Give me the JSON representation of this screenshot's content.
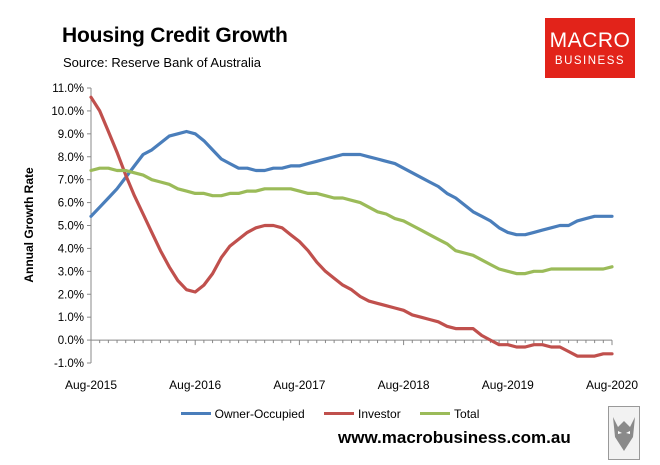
{
  "header": {
    "title": "Housing Credit Growth",
    "subtitle": "Source: Reserve Bank of Australia"
  },
  "logo": {
    "line1": "MACRO",
    "line2": "BUSINESS",
    "background": "#e2231a"
  },
  "footer": {
    "website": "www.macrobusiness.com.au",
    "wolf_logo": "wolf-logo-icon"
  },
  "chart_data": {
    "type": "line",
    "title": "Housing Credit Growth",
    "subtitle": "Source: Reserve Bank of Australia",
    "xlabel": "",
    "ylabel": "Annual Growth Rate",
    "x": [
      "2015-08",
      "2015-09",
      "2015-10",
      "2015-11",
      "2015-12",
      "2016-01",
      "2016-02",
      "2016-03",
      "2016-04",
      "2016-05",
      "2016-06",
      "2016-07",
      "2016-08",
      "2016-09",
      "2016-10",
      "2016-11",
      "2016-12",
      "2017-01",
      "2017-02",
      "2017-03",
      "2017-04",
      "2017-05",
      "2017-06",
      "2017-07",
      "2017-08",
      "2017-09",
      "2017-10",
      "2017-11",
      "2017-12",
      "2018-01",
      "2018-02",
      "2018-03",
      "2018-04",
      "2018-05",
      "2018-06",
      "2018-07",
      "2018-08",
      "2018-09",
      "2018-10",
      "2018-11",
      "2018-12",
      "2019-01",
      "2019-02",
      "2019-03",
      "2019-04",
      "2019-05",
      "2019-06",
      "2019-07",
      "2019-08",
      "2019-09",
      "2019-10",
      "2019-11",
      "2019-12",
      "2020-01",
      "2020-02",
      "2020-03",
      "2020-04",
      "2020-05",
      "2020-06",
      "2020-07",
      "2020-08"
    ],
    "x_tick_labels": [
      "Aug-2015",
      "Aug-2016",
      "Aug-2017",
      "Aug-2018",
      "Aug-2019",
      "Aug-2020"
    ],
    "y_tick_labels": [
      "-1.0%",
      "0.0%",
      "1.0%",
      "2.0%",
      "3.0%",
      "4.0%",
      "5.0%",
      "6.0%",
      "7.0%",
      "8.0%",
      "9.0%",
      "10.0%",
      "11.0%"
    ],
    "ylim": [
      -1,
      11
    ],
    "y_step": 1,
    "grid": false,
    "legend_position": "bottom",
    "series": [
      {
        "name": "Owner-Occupied",
        "color": "#4a7ebb",
        "values": [
          5.4,
          5.8,
          6.2,
          6.6,
          7.1,
          7.6,
          8.1,
          8.3,
          8.6,
          8.9,
          9.0,
          9.1,
          9.0,
          8.7,
          8.3,
          7.9,
          7.7,
          7.5,
          7.5,
          7.4,
          7.4,
          7.5,
          7.5,
          7.6,
          7.6,
          7.7,
          7.8,
          7.9,
          8.0,
          8.1,
          8.1,
          8.1,
          8.0,
          7.9,
          7.8,
          7.7,
          7.5,
          7.3,
          7.1,
          6.9,
          6.7,
          6.4,
          6.2,
          5.9,
          5.6,
          5.4,
          5.2,
          4.9,
          4.7,
          4.6,
          4.6,
          4.7,
          4.8,
          4.9,
          5.0,
          5.0,
          5.2,
          5.3,
          5.4,
          5.4,
          5.4
        ]
      },
      {
        "name": "Investor",
        "color": "#c0504d",
        "values": [
          10.6,
          10.0,
          9.1,
          8.2,
          7.2,
          6.3,
          5.5,
          4.7,
          3.9,
          3.2,
          2.6,
          2.2,
          2.1,
          2.4,
          2.9,
          3.6,
          4.1,
          4.4,
          4.7,
          4.9,
          5.0,
          5.0,
          4.9,
          4.6,
          4.3,
          3.9,
          3.4,
          3.0,
          2.7,
          2.4,
          2.2,
          1.9,
          1.7,
          1.6,
          1.5,
          1.4,
          1.3,
          1.1,
          1.0,
          0.9,
          0.8,
          0.6,
          0.5,
          0.5,
          0.5,
          0.2,
          0.0,
          -0.2,
          -0.2,
          -0.3,
          -0.3,
          -0.2,
          -0.2,
          -0.3,
          -0.3,
          -0.5,
          -0.7,
          -0.7,
          -0.7,
          -0.6,
          -0.6
        ]
      },
      {
        "name": "Total",
        "color": "#9bbb59",
        "values": [
          7.4,
          7.5,
          7.5,
          7.4,
          7.4,
          7.3,
          7.2,
          7.0,
          6.9,
          6.8,
          6.6,
          6.5,
          6.4,
          6.4,
          6.3,
          6.3,
          6.4,
          6.4,
          6.5,
          6.5,
          6.6,
          6.6,
          6.6,
          6.6,
          6.5,
          6.4,
          6.4,
          6.3,
          6.2,
          6.2,
          6.1,
          6.0,
          5.8,
          5.6,
          5.5,
          5.3,
          5.2,
          5.0,
          4.8,
          4.6,
          4.4,
          4.2,
          3.9,
          3.8,
          3.7,
          3.5,
          3.3,
          3.1,
          3.0,
          2.9,
          2.9,
          3.0,
          3.0,
          3.1,
          3.1,
          3.1,
          3.1,
          3.1,
          3.1,
          3.1,
          3.2
        ]
      }
    ]
  }
}
